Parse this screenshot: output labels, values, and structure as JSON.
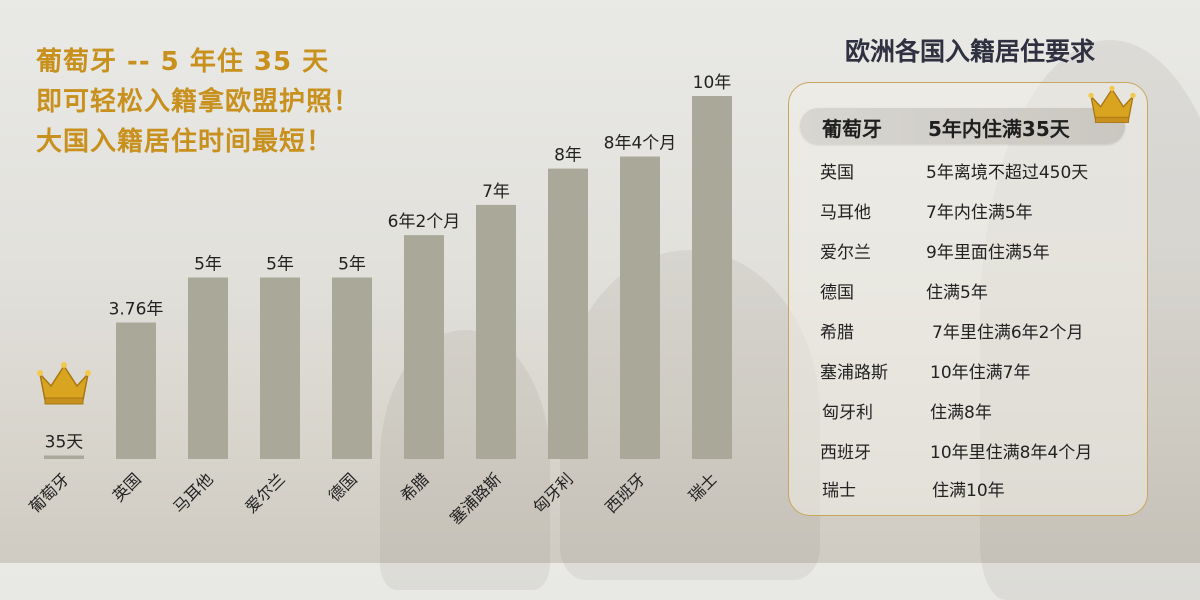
{
  "headline": {
    "line1": "葡萄牙 -- 5 年住 35 天",
    "line2": "即可轻松入籍拿欧盟护照！",
    "line3": "大国入籍居住时间最短！"
  },
  "colors": {
    "gold": "#c8901c",
    "bar": "#a9a899",
    "text": "#222222",
    "title": "#2f3040",
    "border": "#c9a65d"
  },
  "chart_data": {
    "type": "bar",
    "categories": [
      "葡萄牙",
      "英国",
      "马耳他",
      "爱尔兰",
      "德国",
      "希腊",
      "塞浦路斯",
      "匈牙利",
      "西班牙",
      "瑞士"
    ],
    "values_years": [
      0.096,
      3.76,
      5,
      5,
      5,
      6.167,
      7,
      8,
      8.333,
      10
    ],
    "data_labels": [
      "35天",
      "3.76年",
      "5年",
      "5年",
      "5年",
      "6年2个月",
      "7年",
      "8年",
      "8年4个月",
      "10年"
    ],
    "ylim": [
      0,
      10
    ],
    "grid": false,
    "legend": "none"
  },
  "table": {
    "title": "欧洲各国入籍居住要求",
    "header": {
      "country": "葡萄牙",
      "requirement": "5年内住满35天"
    },
    "rows": [
      {
        "country": "英国",
        "requirement": "5年离境不超过450天"
      },
      {
        "country": "马耳他",
        "requirement": "7年内住满5年"
      },
      {
        "country": "爱尔兰",
        "requirement": "9年里面住满5年"
      },
      {
        "country": "德国",
        "requirement": "住满5年"
      },
      {
        "country": "希腊",
        "requirement": "7年里住满6年2个月"
      },
      {
        "country": "塞浦路斯",
        "requirement": "10年住满7年"
      },
      {
        "country": "匈牙利",
        "requirement": "住满8年"
      },
      {
        "country": "西班牙",
        "requirement": "10年里住满8年4个月"
      },
      {
        "country": "瑞士",
        "requirement": "住满10年"
      }
    ]
  },
  "icons": {
    "chart_crown": "crown-icon",
    "table_crown": "crown-icon"
  }
}
